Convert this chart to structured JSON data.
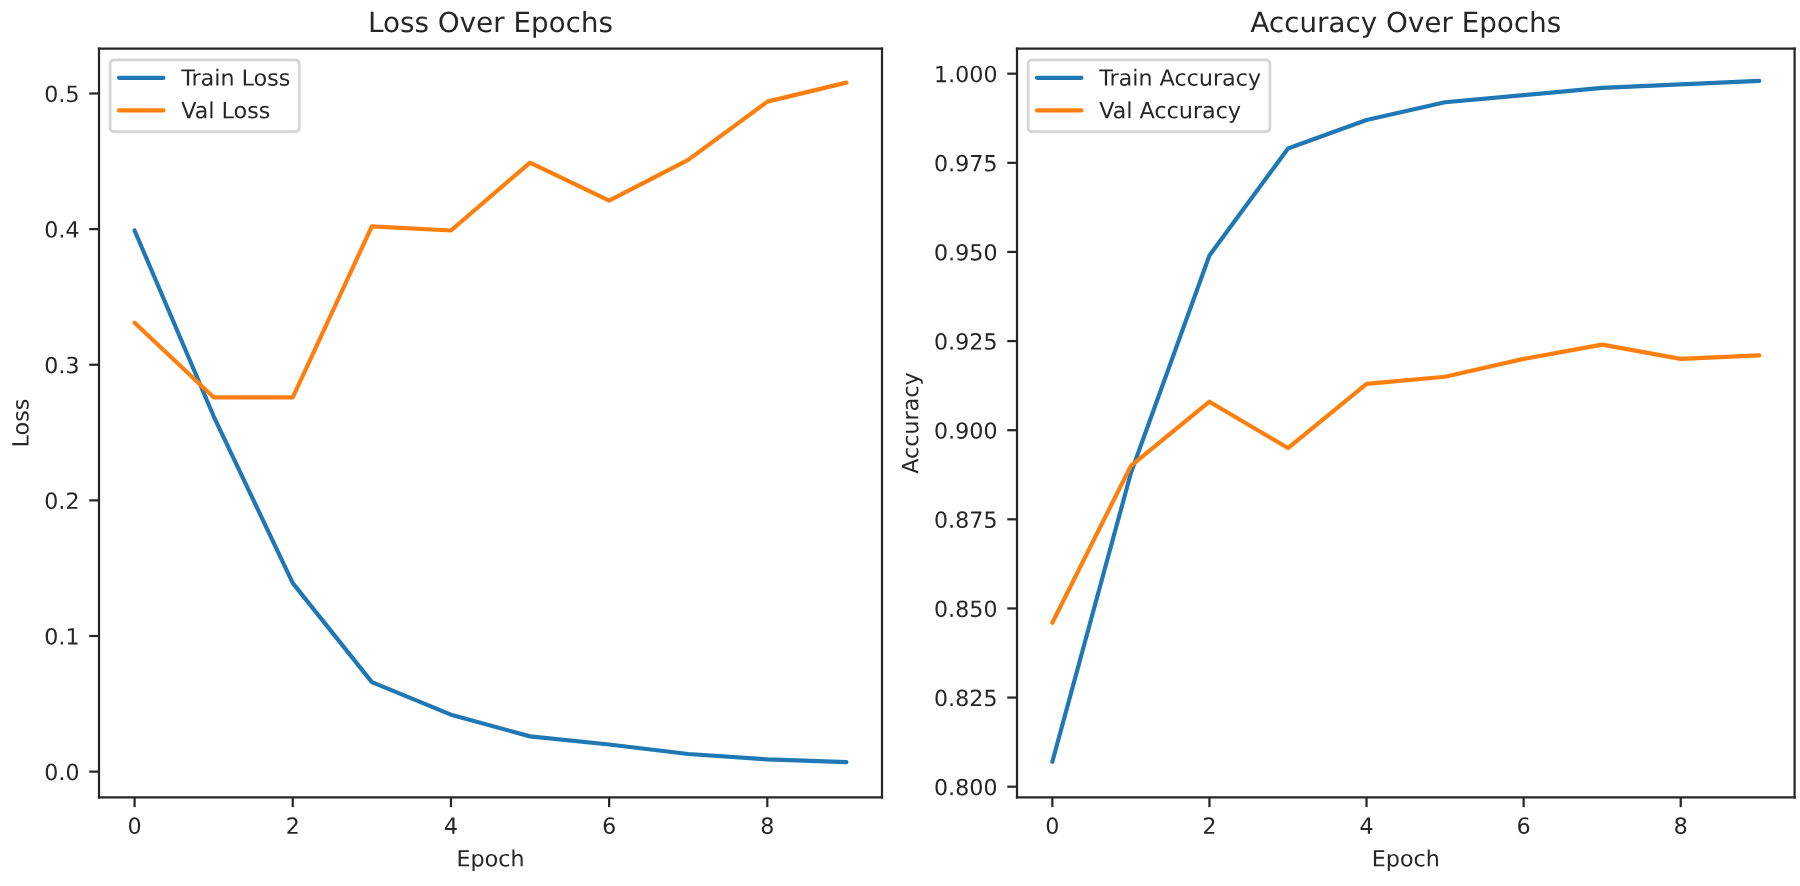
{
  "chart_data": [
    {
      "type": "line",
      "title": "Loss Over Epochs",
      "xlabel": "Epoch",
      "ylabel": "Loss",
      "x": [
        0,
        1,
        2,
        3,
        4,
        5,
        6,
        7,
        8,
        9
      ],
      "series": [
        {
          "name": "Train Loss",
          "color": "#1f77b4",
          "values": [
            0.399,
            0.262,
            0.139,
            0.066,
            0.042,
            0.026,
            0.02,
            0.013,
            0.009,
            0.007
          ]
        },
        {
          "name": "Val Loss",
          "color": "#ff7f0e",
          "values": [
            0.331,
            0.276,
            0.276,
            0.402,
            0.399,
            0.449,
            0.421,
            0.451,
            0.494,
            0.508
          ]
        }
      ],
      "xlim": [
        -0.45,
        9.45
      ],
      "xticks": [
        0,
        2,
        4,
        6,
        8
      ],
      "ylim": [
        -0.019,
        0.533
      ],
      "yticks": [
        {
          "value": 0.0,
          "label": "0.0"
        },
        0.1,
        0.2,
        0.3,
        0.4,
        0.5
      ],
      "legend": "top left",
      "grid": false
    },
    {
      "type": "line",
      "title": "Accuracy Over Epochs",
      "xlabel": "Epoch",
      "ylabel": "Accuracy",
      "x": [
        0,
        1,
        2,
        3,
        4,
        5,
        6,
        7,
        8,
        9
      ],
      "series": [
        {
          "name": "Train Accuracy",
          "color": "#1f77b4",
          "values": [
            0.807,
            0.888,
            0.949,
            0.979,
            0.987,
            0.992,
            0.994,
            0.996,
            0.997,
            0.998
          ]
        },
        {
          "name": "Val Accuracy",
          "color": "#ff7f0e",
          "values": [
            0.846,
            0.89,
            0.908,
            0.895,
            0.913,
            0.915,
            0.92,
            0.924,
            0.92,
            0.921
          ]
        }
      ],
      "xlim": [
        -0.45,
        9.45
      ],
      "xticks": [
        0,
        2,
        4,
        6,
        8
      ],
      "ylim": [
        0.797,
        1.007
      ],
      "yticks": [
        {
          "value": 0.8,
          "label": "0.800"
        },
        {
          "value": 0.825,
          "label": "0.825"
        },
        {
          "value": 0.85,
          "label": "0.850"
        },
        {
          "value": 0.875,
          "label": "0.875"
        },
        {
          "value": 0.9,
          "label": "0.900"
        },
        {
          "value": 0.925,
          "label": "0.925"
        },
        {
          "value": 0.95,
          "label": "0.950"
        },
        {
          "value": 0.975,
          "label": "0.975"
        },
        {
          "value": 1.0,
          "label": "1.000"
        }
      ],
      "legend": "top left",
      "grid": false
    }
  ]
}
